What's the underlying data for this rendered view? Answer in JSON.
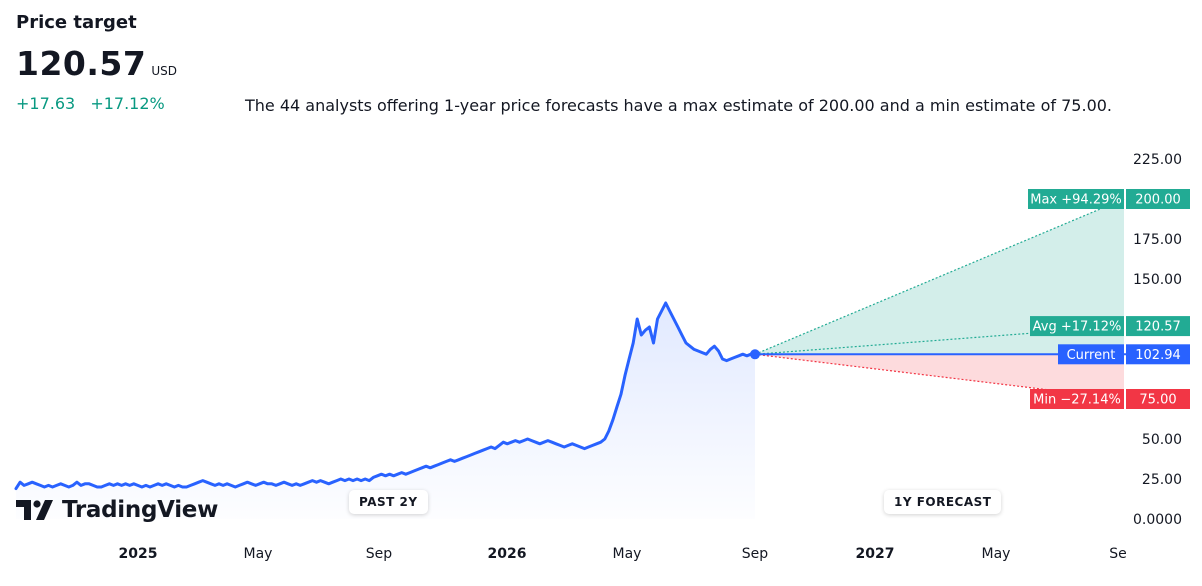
{
  "header": {
    "title": "Price target",
    "price": "120.57",
    "currency": "USD",
    "change_abs": "+17.63",
    "change_pct": "+17.12%",
    "summary": "The 44 analysts offering 1-year price forecasts have a max estimate of 200.00 and a min estimate of 75.00."
  },
  "branding": {
    "logo_text": "TradingView",
    "logo_icon": "tradingview-logo-icon"
  },
  "section_labels": {
    "past": "PAST 2Y",
    "forecast": "1Y FORECAST"
  },
  "colors": {
    "price_line": "#2962ff",
    "max_avg": "#22ab94",
    "min": "#f23645",
    "current": "#2962ff",
    "positive_text": "#089981"
  },
  "chart_data": {
    "type": "line",
    "y_axis": {
      "range": [
        0,
        225
      ],
      "ticks": [
        0,
        25,
        50,
        75,
        100,
        125,
        150,
        175,
        200,
        225
      ],
      "tick_labels": [
        "0.0000",
        "25.00",
        "50.00",
        "",
        "",
        "",
        "150.00",
        "175.00",
        "",
        "225.00"
      ]
    },
    "x_axis": {
      "tick_labels": [
        "2025",
        "May",
        "Sep",
        "2026",
        "May",
        "Sep",
        "2027",
        "May",
        "Se"
      ],
      "bold_labels": [
        "2025",
        "2026",
        "2027"
      ]
    },
    "series": [
      {
        "values": [
          19,
          23,
          21,
          22,
          23,
          22,
          21,
          20,
          21,
          20,
          21,
          22,
          21,
          20,
          21,
          23,
          21,
          22,
          22,
          21,
          20,
          20,
          21,
          22,
          21,
          22,
          21,
          22,
          21,
          22,
          21,
          20,
          21,
          20,
          21,
          22,
          21,
          22,
          21,
          20,
          21,
          20,
          20,
          21,
          22,
          23,
          24,
          23,
          22,
          21,
          22,
          21,
          22,
          21,
          20,
          21,
          22,
          23,
          22,
          21,
          22,
          23,
          22,
          22,
          21,
          22,
          23,
          22,
          21,
          22,
          21,
          22,
          23,
          24,
          23,
          24,
          23,
          22,
          23,
          24,
          25,
          24,
          25,
          24,
          25,
          24,
          25,
          24,
          26,
          27,
          28,
          27,
          28,
          27,
          28,
          29,
          28,
          29,
          30,
          31,
          32,
          33,
          32,
          33,
          34,
          35,
          36,
          37,
          36,
          37,
          38,
          39,
          40,
          41,
          42,
          43,
          44,
          45,
          44,
          46,
          48,
          47,
          48,
          49,
          48,
          49,
          50,
          49,
          48,
          47,
          48,
          49,
          48,
          47,
          46,
          45,
          46,
          47,
          46,
          45,
          44,
          45,
          46,
          47,
          48,
          50,
          55,
          62,
          70,
          78,
          90,
          100,
          110,
          125,
          115,
          118,
          120,
          110,
          125,
          130,
          135,
          130,
          125,
          120,
          115,
          110,
          108,
          106,
          105,
          104,
          103,
          106,
          108,
          105,
          100,
          99,
          100,
          101,
          102,
          103,
          102,
          103,
          102.94
        ],
        "end_value": 102.94
      }
    ],
    "forecast": {
      "analysts": 44,
      "max": {
        "value": 200.0,
        "label": "Max",
        "pct": "+94.29%",
        "value_label": "200.00"
      },
      "avg": {
        "value": 120.57,
        "label": "Avg",
        "pct": "+17.12%",
        "value_label": "120.57"
      },
      "current": {
        "value": 102.94,
        "label": "Current",
        "value_label": "102.94"
      },
      "min": {
        "value": 75.0,
        "label": "Min",
        "pct": "−27.14%",
        "value_label": "75.00"
      }
    }
  }
}
